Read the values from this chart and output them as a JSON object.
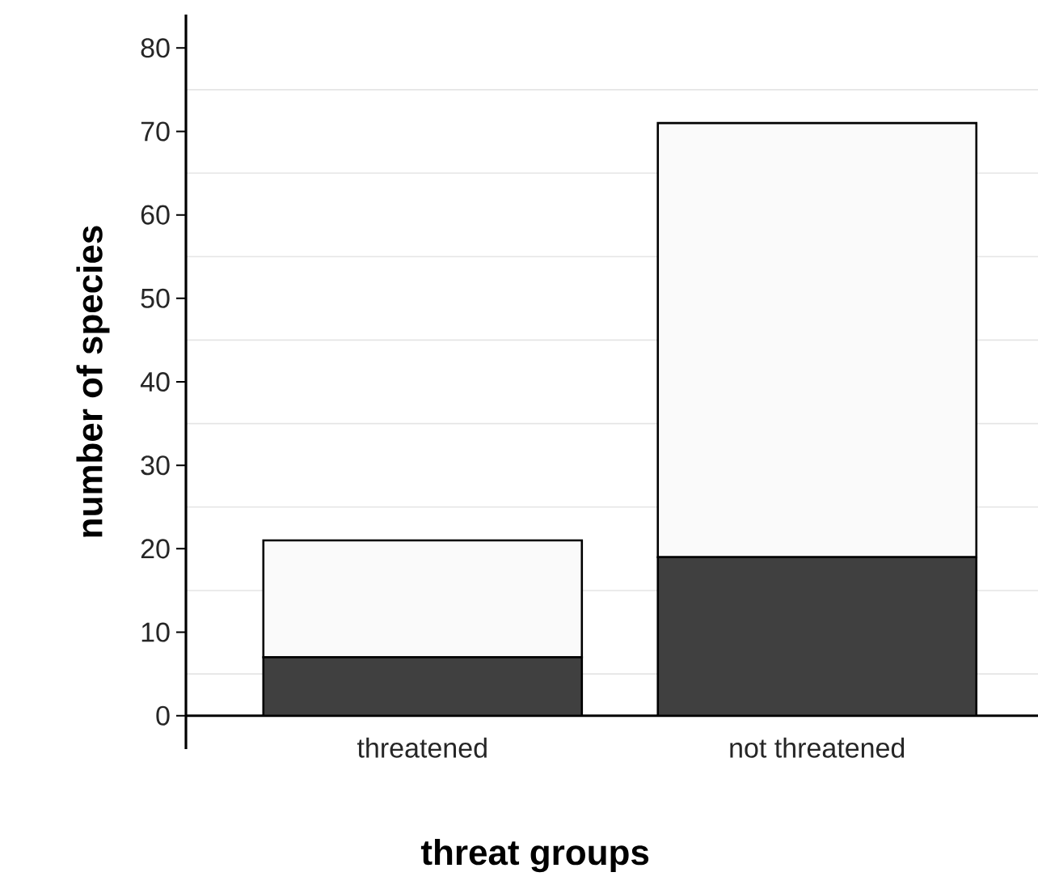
{
  "chart_data": {
    "type": "bar",
    "stacked": true,
    "xlabel": "threat groups",
    "ylabel": "number of species",
    "categories": [
      "threatened",
      "not threatened"
    ],
    "series": [
      {
        "color": "#404040",
        "values": [
          7,
          19
        ]
      },
      {
        "color": "#fafafa",
        "values": [
          14,
          52
        ]
      }
    ],
    "ylim": [
      -4,
      84
    ],
    "yticks": [
      0,
      10,
      20,
      30,
      40,
      50,
      60,
      70,
      80
    ],
    "grid": "y"
  }
}
